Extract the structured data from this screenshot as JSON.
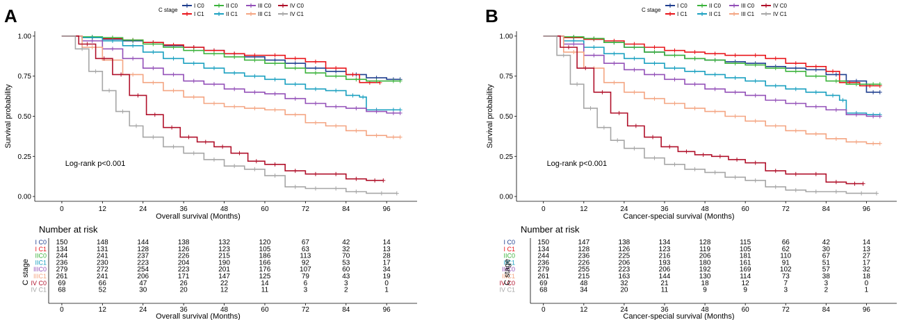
{
  "legend_title": "C stage",
  "strata": [
    {
      "key": "I C0",
      "color": "#1f3f8f"
    },
    {
      "key": "II C0",
      "color": "#3cb33c"
    },
    {
      "key": "III C0",
      "color": "#9350b8"
    },
    {
      "key": "IV C0",
      "color": "#b0102a"
    },
    {
      "key": "I C1",
      "color": "#e8141a"
    },
    {
      "key": "II C1",
      "color": "#1aa0c0"
    },
    {
      "key": "III C1",
      "color": "#f4a582"
    },
    {
      "key": "IV C1",
      "color": "#a6a6a6"
    }
  ],
  "chart_data": [
    {
      "type": "line",
      "panel_label": "A",
      "xlabel": "Overall survival (Months)",
      "ylabel": "Survival probability",
      "annotation": "Log-rank p<0.001",
      "xlim": [
        -8,
        105
      ],
      "ylim": [
        -0.03,
        1.03
      ],
      "x_ticks": [
        0,
        12,
        24,
        36,
        48,
        60,
        72,
        84,
        96
      ],
      "y_ticks": [
        0.0,
        0.25,
        0.5,
        0.75,
        1.0
      ],
      "y_tick_labels": [
        "0.00",
        "0.25",
        "0.50",
        "0.75",
        "1.00"
      ],
      "series": [
        {
          "name": "I C0",
          "x": [
            0,
            6,
            12,
            18,
            24,
            30,
            36,
            42,
            48,
            54,
            60,
            66,
            72,
            78,
            84,
            90,
            96,
            100
          ],
          "y": [
            1.0,
            0.99,
            0.98,
            0.97,
            0.96,
            0.94,
            0.93,
            0.91,
            0.89,
            0.87,
            0.85,
            0.83,
            0.8,
            0.78,
            0.76,
            0.74,
            0.73,
            0.73
          ],
          "end": 100
        },
        {
          "name": "I C1",
          "x": [
            0,
            6,
            12,
            18,
            24,
            30,
            36,
            42,
            48,
            54,
            60,
            66,
            72,
            78,
            84,
            88,
            94
          ],
          "y": [
            1.0,
            0.99,
            0.985,
            0.975,
            0.96,
            0.945,
            0.93,
            0.91,
            0.89,
            0.88,
            0.88,
            0.86,
            0.84,
            0.8,
            0.76,
            0.71,
            0.71
          ],
          "end": 94
        },
        {
          "name": "II C0",
          "x": [
            0,
            6,
            12,
            18,
            24,
            30,
            36,
            42,
            48,
            54,
            60,
            66,
            72,
            78,
            84,
            90,
            96,
            100
          ],
          "y": [
            1.0,
            0.995,
            0.99,
            0.975,
            0.95,
            0.93,
            0.91,
            0.89,
            0.87,
            0.85,
            0.83,
            0.8,
            0.77,
            0.75,
            0.73,
            0.72,
            0.72,
            0.72
          ],
          "end": 100
        },
        {
          "name": "II C1",
          "x": [
            0,
            6,
            12,
            18,
            24,
            30,
            36,
            42,
            48,
            54,
            60,
            66,
            72,
            78,
            84,
            88,
            90,
            96,
            100
          ],
          "y": [
            1.0,
            0.99,
            0.97,
            0.94,
            0.9,
            0.86,
            0.83,
            0.8,
            0.77,
            0.75,
            0.73,
            0.7,
            0.67,
            0.66,
            0.63,
            0.62,
            0.54,
            0.54,
            0.54
          ],
          "end": 100
        },
        {
          "name": "III C0",
          "x": [
            0,
            6,
            12,
            18,
            24,
            30,
            36,
            42,
            48,
            54,
            60,
            66,
            72,
            78,
            84,
            90,
            96,
            100
          ],
          "y": [
            1.0,
            0.97,
            0.92,
            0.86,
            0.8,
            0.76,
            0.72,
            0.7,
            0.67,
            0.65,
            0.64,
            0.61,
            0.58,
            0.56,
            0.55,
            0.53,
            0.52,
            0.52
          ],
          "end": 100
        },
        {
          "name": "III C1",
          "x": [
            0,
            6,
            12,
            18,
            24,
            30,
            36,
            42,
            48,
            54,
            60,
            66,
            72,
            78,
            84,
            90,
            96,
            100
          ],
          "y": [
            1.0,
            0.93,
            0.85,
            0.76,
            0.71,
            0.66,
            0.62,
            0.58,
            0.56,
            0.55,
            0.54,
            0.51,
            0.46,
            0.44,
            0.41,
            0.38,
            0.37,
            0.37
          ],
          "end": 100
        },
        {
          "name": "IV C0",
          "x": [
            0,
            5,
            10,
            15,
            20,
            25,
            30,
            35,
            40,
            45,
            50,
            55,
            60,
            66,
            72,
            78,
            84,
            90,
            95
          ],
          "y": [
            1.0,
            0.95,
            0.86,
            0.76,
            0.63,
            0.51,
            0.43,
            0.37,
            0.34,
            0.31,
            0.27,
            0.22,
            0.2,
            0.16,
            0.14,
            0.14,
            0.11,
            0.1,
            0.1
          ],
          "end": 95
        },
        {
          "name": "IV C1",
          "x": [
            0,
            4,
            8,
            12,
            16,
            20,
            24,
            30,
            36,
            42,
            48,
            54,
            60,
            66,
            72,
            78,
            84,
            90,
            99
          ],
          "y": [
            1.0,
            0.92,
            0.78,
            0.66,
            0.53,
            0.44,
            0.37,
            0.31,
            0.27,
            0.23,
            0.19,
            0.17,
            0.13,
            0.06,
            0.05,
            0.05,
            0.03,
            0.02,
            0.02
          ],
          "end": 99
        }
      ],
      "risk_table": {
        "title": "Number at risk",
        "ylabel": "C stage",
        "row_labels": [
          "I C0",
          "I C1",
          "IIC0",
          "IIC1",
          "IIIC0",
          "IIIC1",
          "IV C0",
          "IV C1"
        ],
        "row_colors": [
          "#1f3f8f",
          "#e8141a",
          "#3cb33c",
          "#1aa0c0",
          "#9350b8",
          "#f4a582",
          "#b0102a",
          "#a6a6a6"
        ],
        "rows": [
          [
            "150",
            "148",
            "144",
            "138",
            "132",
            "120",
            "67",
            "42",
            "14"
          ],
          [
            "134",
            "131",
            "128",
            "126",
            "123",
            "105",
            "63",
            "32",
            "13"
          ],
          [
            "244",
            "241",
            "237",
            "226",
            "215",
            "186",
            "113",
            "70",
            "28"
          ],
          [
            "236",
            "230",
            "223",
            "204",
            "190",
            "166",
            "92",
            "53",
            "17"
          ],
          [
            "279",
            "272",
            "254",
            "223",
            "201",
            "176",
            "107",
            "60",
            "34"
          ],
          [
            "261",
            "241",
            "206",
            "171",
            "147",
            "125",
            "79",
            "43",
            "19"
          ],
          [
            "69",
            "66",
            "47",
            "26",
            "22",
            "14",
            "6",
            "3",
            "0"
          ],
          [
            "68",
            "52",
            "30",
            "20",
            "12",
            "11",
            "3",
            "2",
            "1"
          ]
        ],
        "xlabel": "Overall survival (Months)"
      }
    },
    {
      "type": "line",
      "panel_label": "B",
      "xlabel": "Cancer-special survival (Months)",
      "ylabel": "Survival probability",
      "annotation": "Log-rank p<0.001",
      "xlim": [
        -8,
        105
      ],
      "ylim": [
        -0.03,
        1.03
      ],
      "x_ticks": [
        0,
        12,
        24,
        36,
        48,
        60,
        72,
        84,
        96
      ],
      "y_ticks": [
        0.0,
        0.25,
        0.5,
        0.75,
        1.0
      ],
      "y_tick_labels": [
        "0.00",
        "0.25",
        "0.50",
        "0.75",
        "1.00"
      ],
      "series": [
        {
          "name": "I C0",
          "x": [
            0,
            6,
            12,
            18,
            24,
            30,
            36,
            42,
            48,
            54,
            60,
            66,
            72,
            78,
            84,
            90,
            96,
            100
          ],
          "y": [
            1.0,
            0.99,
            0.98,
            0.96,
            0.93,
            0.9,
            0.88,
            0.86,
            0.85,
            0.84,
            0.83,
            0.81,
            0.8,
            0.79,
            0.76,
            0.72,
            0.65,
            0.65
          ],
          "end": 100
        },
        {
          "name": "I C1",
          "x": [
            0,
            6,
            12,
            18,
            24,
            30,
            36,
            42,
            48,
            54,
            60,
            66,
            72,
            78,
            84,
            88,
            94,
            100
          ],
          "y": [
            1.0,
            0.99,
            0.98,
            0.97,
            0.95,
            0.93,
            0.91,
            0.9,
            0.89,
            0.88,
            0.88,
            0.86,
            0.83,
            0.81,
            0.78,
            0.71,
            0.69,
            0.69
          ],
          "end": 100
        },
        {
          "name": "II C0",
          "x": [
            0,
            6,
            12,
            18,
            24,
            30,
            36,
            42,
            48,
            54,
            60,
            66,
            72,
            78,
            84,
            90,
            96,
            100
          ],
          "y": [
            1.0,
            0.995,
            0.985,
            0.96,
            0.93,
            0.9,
            0.88,
            0.86,
            0.85,
            0.83,
            0.82,
            0.8,
            0.78,
            0.75,
            0.72,
            0.7,
            0.7,
            0.7
          ],
          "end": 100
        },
        {
          "name": "II C1",
          "x": [
            0,
            6,
            12,
            18,
            24,
            30,
            36,
            42,
            48,
            54,
            60,
            66,
            72,
            78,
            84,
            88,
            90,
            96,
            100
          ],
          "y": [
            1.0,
            0.97,
            0.93,
            0.89,
            0.86,
            0.83,
            0.8,
            0.78,
            0.76,
            0.74,
            0.72,
            0.69,
            0.67,
            0.65,
            0.63,
            0.6,
            0.52,
            0.51,
            0.51
          ],
          "end": 100
        },
        {
          "name": "III C0",
          "x": [
            0,
            6,
            12,
            18,
            24,
            30,
            36,
            42,
            48,
            54,
            60,
            66,
            72,
            78,
            84,
            90,
            96,
            100
          ],
          "y": [
            1.0,
            0.95,
            0.88,
            0.83,
            0.79,
            0.76,
            0.73,
            0.7,
            0.67,
            0.65,
            0.63,
            0.6,
            0.58,
            0.56,
            0.54,
            0.51,
            0.5,
            0.5
          ],
          "end": 100
        },
        {
          "name": "III C1",
          "x": [
            0,
            6,
            12,
            18,
            24,
            30,
            36,
            42,
            48,
            54,
            60,
            66,
            72,
            78,
            84,
            90,
            96,
            100
          ],
          "y": [
            1.0,
            0.9,
            0.8,
            0.71,
            0.65,
            0.61,
            0.58,
            0.55,
            0.53,
            0.5,
            0.47,
            0.44,
            0.41,
            0.39,
            0.36,
            0.34,
            0.33,
            0.33
          ],
          "end": 100
        },
        {
          "name": "IV C0",
          "x": [
            0,
            5,
            10,
            15,
            20,
            25,
            30,
            35,
            40,
            45,
            50,
            55,
            60,
            66,
            72,
            78,
            84,
            90,
            95
          ],
          "y": [
            1.0,
            0.93,
            0.8,
            0.65,
            0.52,
            0.44,
            0.37,
            0.31,
            0.28,
            0.26,
            0.25,
            0.23,
            0.21,
            0.16,
            0.14,
            0.14,
            0.09,
            0.08,
            0.08
          ],
          "end": 95
        },
        {
          "name": "IV C1",
          "x": [
            0,
            4,
            8,
            12,
            16,
            20,
            24,
            30,
            36,
            42,
            48,
            54,
            60,
            66,
            72,
            78,
            84,
            90,
            99
          ],
          "y": [
            1.0,
            0.88,
            0.7,
            0.55,
            0.43,
            0.35,
            0.3,
            0.24,
            0.2,
            0.17,
            0.15,
            0.12,
            0.1,
            0.06,
            0.04,
            0.03,
            0.03,
            0.02,
            0.02
          ],
          "end": 99
        }
      ],
      "risk_table": {
        "title": "Number at risk",
        "ylabel": "C stage",
        "row_labels": [
          "I C0",
          "I C1",
          "IIC0",
          "IIC1",
          "IIIC0",
          "IIIC1",
          "IV C0",
          "IV C1"
        ],
        "row_colors": [
          "#1f3f8f",
          "#e8141a",
          "#3cb33c",
          "#1aa0c0",
          "#9350b8",
          "#f4a582",
          "#b0102a",
          "#a6a6a6"
        ],
        "rows": [
          [
            "150",
            "147",
            "138",
            "134",
            "128",
            "115",
            "66",
            "42",
            "14"
          ],
          [
            "134",
            "128",
            "126",
            "123",
            "119",
            "105",
            "62",
            "30",
            "13"
          ],
          [
            "244",
            "236",
            "225",
            "216",
            "206",
            "181",
            "110",
            "67",
            "27"
          ],
          [
            "236",
            "226",
            "206",
            "193",
            "180",
            "161",
            "91",
            "51",
            "17"
          ],
          [
            "279",
            "255",
            "223",
            "206",
            "192",
            "169",
            "102",
            "57",
            "32"
          ],
          [
            "261",
            "215",
            "163",
            "144",
            "130",
            "114",
            "73",
            "38",
            "18"
          ],
          [
            "69",
            "48",
            "32",
            "21",
            "18",
            "12",
            "7",
            "3",
            "0"
          ],
          [
            "68",
            "34",
            "20",
            "11",
            "9",
            "9",
            "3",
            "2",
            "1"
          ]
        ],
        "xlabel": "Cancer-special survival (Months)"
      }
    }
  ]
}
